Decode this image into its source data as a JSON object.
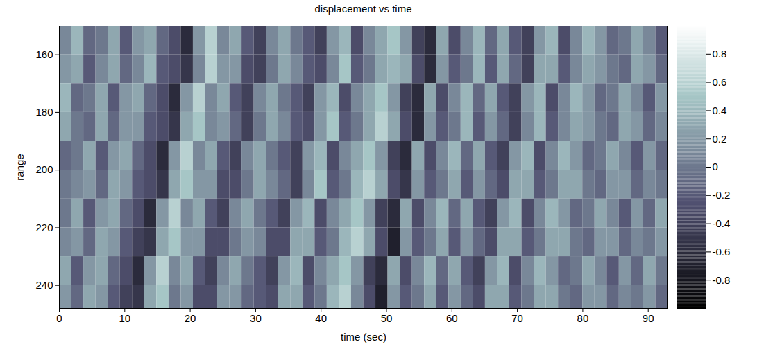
{
  "chart_data": {
    "type": "heatmap",
    "title": "displacement vs time",
    "x_label": "time (sec)",
    "y_label": "range",
    "xlim": [
      0,
      93
    ],
    "xticks": [
      0,
      10,
      20,
      30,
      40,
      50,
      60,
      70,
      80,
      90
    ],
    "ylim": [
      150,
      248
    ],
    "yticks": [
      160,
      180,
      200,
      220,
      240
    ],
    "x_edges": [
      0,
      1.86,
      3.72,
      5.58,
      7.44,
      9.3,
      11.16,
      13.02,
      14.88,
      16.74,
      18.6,
      20.46,
      22.32,
      24.18,
      26.04,
      27.9,
      29.76,
      31.62,
      33.48,
      35.34,
      37.2,
      39.06,
      40.92,
      42.78,
      44.64,
      46.5,
      48.36,
      50.22,
      52.08,
      53.94,
      55.8,
      57.66,
      59.52,
      61.38,
      63.24,
      65.1,
      66.96,
      68.82,
      70.68,
      72.54,
      74.4,
      76.26,
      78.12,
      79.98,
      81.84,
      83.7,
      85.56,
      87.42,
      89.28,
      91.14,
      93
    ],
    "y_edges": [
      150,
      160,
      170,
      180,
      190,
      200,
      210,
      220,
      230,
      240,
      248
    ],
    "cells": [
      [
        0.1,
        0.4,
        -0.1,
        0.0,
        0.3,
        -0.2,
        0.2,
        0.3,
        -0.1,
        -0.3,
        -0.6,
        0.2,
        0.6,
        0.1,
        0.3,
        -0.2,
        -0.4,
        0.1,
        0.3,
        0.0,
        -0.2,
        -0.4,
        0.2,
        0.4,
        -0.3,
        0.1,
        0.3,
        0.5,
        0.2,
        -0.4,
        -0.6,
        0.3,
        -0.3,
        0.1,
        0.4,
        -0.1,
        0.3,
        -0.2,
        -0.4,
        0.2,
        0.4,
        -0.3,
        0.1,
        0.4,
        0.2,
        -0.1,
        0.0,
        0.3,
        0.1,
        -0.2
      ],
      [
        0.2,
        0.3,
        -0.2,
        0.1,
        0.3,
        -0.1,
        0.1,
        0.4,
        -0.2,
        -0.3,
        -0.5,
        0.1,
        0.6,
        0.2,
        0.2,
        -0.3,
        -0.4,
        0.0,
        0.3,
        0.1,
        -0.2,
        -0.3,
        0.1,
        0.5,
        -0.2,
        0.0,
        0.3,
        0.4,
        0.3,
        -0.3,
        -0.6,
        0.2,
        -0.2,
        0.0,
        0.4,
        -0.2,
        0.3,
        -0.1,
        -0.4,
        0.3,
        0.3,
        -0.2,
        0.1,
        0.3,
        0.2,
        0.0,
        -0.1,
        0.3,
        0.2,
        -0.1
      ],
      [
        0.4,
        -0.1,
        0.0,
        0.3,
        -0.2,
        0.2,
        0.3,
        -0.1,
        -0.3,
        -0.6,
        0.2,
        0.6,
        0.1,
        0.3,
        -0.2,
        -0.4,
        0.1,
        0.3,
        0.0,
        -0.2,
        -0.4,
        0.2,
        0.4,
        -0.3,
        0.1,
        0.3,
        0.5,
        0.2,
        -0.4,
        -0.6,
        0.3,
        -0.3,
        0.1,
        0.4,
        -0.1,
        0.3,
        -0.2,
        -0.4,
        0.2,
        0.4,
        -0.3,
        0.1,
        0.4,
        0.2,
        -0.1,
        0.0,
        0.3,
        0.1,
        -0.2,
        0.2
      ],
      [
        0.3,
        0.0,
        -0.1,
        0.3,
        -0.1,
        0.2,
        0.2,
        -0.2,
        -0.3,
        -0.5,
        0.3,
        0.5,
        0.1,
        0.2,
        -0.1,
        -0.4,
        0.0,
        0.3,
        0.1,
        -0.2,
        -0.3,
        0.2,
        0.5,
        -0.2,
        0.0,
        0.3,
        0.6,
        0.3,
        -0.3,
        -0.6,
        0.2,
        -0.2,
        0.0,
        0.4,
        -0.2,
        0.2,
        -0.1,
        -0.4,
        0.1,
        0.4,
        -0.2,
        0.1,
        0.3,
        0.2,
        0.0,
        -0.1,
        0.3,
        0.2,
        -0.1,
        0.1
      ],
      [
        -0.1,
        0.0,
        0.3,
        -0.2,
        0.2,
        0.3,
        -0.1,
        -0.3,
        -0.6,
        0.2,
        0.6,
        0.1,
        0.3,
        -0.2,
        -0.4,
        0.1,
        0.3,
        0.0,
        -0.2,
        -0.4,
        0.2,
        0.4,
        -0.3,
        0.1,
        0.3,
        0.5,
        0.2,
        -0.4,
        -0.6,
        0.3,
        -0.3,
        0.1,
        0.4,
        -0.1,
        0.3,
        -0.2,
        -0.4,
        0.2,
        0.4,
        -0.3,
        0.1,
        0.4,
        0.2,
        -0.1,
        0.0,
        0.3,
        0.1,
        -0.2,
        0.2,
        -0.1
      ],
      [
        0.0,
        0.1,
        0.2,
        -0.1,
        0.3,
        0.2,
        -0.2,
        -0.3,
        -0.5,
        0.3,
        0.5,
        0.2,
        0.2,
        -0.3,
        -0.3,
        0.0,
        0.3,
        0.1,
        -0.1,
        -0.4,
        0.1,
        0.5,
        -0.2,
        0.0,
        0.4,
        0.6,
        0.3,
        -0.3,
        -0.5,
        0.2,
        -0.2,
        0.0,
        0.3,
        -0.2,
        0.2,
        -0.1,
        -0.3,
        0.3,
        0.3,
        -0.2,
        0.0,
        0.3,
        0.3,
        0.0,
        -0.1,
        0.2,
        0.2,
        -0.1,
        0.1,
        0.0
      ],
      [
        0.0,
        0.3,
        -0.2,
        0.2,
        0.3,
        -0.1,
        -0.3,
        -0.6,
        0.2,
        0.6,
        0.1,
        0.3,
        -0.2,
        -0.4,
        0.1,
        0.3,
        0.0,
        -0.2,
        -0.4,
        0.2,
        0.4,
        -0.3,
        0.1,
        0.3,
        0.5,
        0.2,
        -0.4,
        -0.6,
        0.3,
        -0.3,
        0.1,
        0.4,
        -0.1,
        0.3,
        -0.2,
        -0.4,
        0.2,
        0.4,
        -0.3,
        0.1,
        0.4,
        0.2,
        -0.1,
        0.0,
        0.3,
        0.1,
        -0.2,
        0.2,
        -0.1,
        0.3
      ],
      [
        0.1,
        0.2,
        -0.1,
        0.3,
        0.2,
        -0.2,
        -0.4,
        -0.5,
        0.3,
        0.5,
        0.2,
        0.2,
        -0.3,
        -0.3,
        0.0,
        0.2,
        0.1,
        -0.3,
        -0.3,
        0.3,
        0.3,
        -0.2,
        0.0,
        0.4,
        0.6,
        0.3,
        -0.3,
        -0.7,
        0.2,
        -0.2,
        0.0,
        0.3,
        -0.2,
        0.2,
        -0.1,
        -0.3,
        0.3,
        0.3,
        -0.2,
        0.0,
        0.3,
        0.3,
        0.0,
        -0.1,
        0.2,
        0.2,
        -0.1,
        0.1,
        0.0,
        0.2
      ],
      [
        0.3,
        -0.2,
        0.2,
        0.3,
        -0.1,
        -0.3,
        -0.6,
        0.2,
        0.6,
        0.1,
        0.3,
        -0.2,
        -0.4,
        0.1,
        0.3,
        0.0,
        -0.2,
        -0.4,
        0.2,
        0.4,
        -0.3,
        0.1,
        0.3,
        0.5,
        0.2,
        -0.4,
        -0.6,
        0.3,
        -0.3,
        0.1,
        0.4,
        -0.1,
        0.3,
        -0.2,
        -0.4,
        0.2,
        0.4,
        -0.3,
        0.1,
        0.4,
        0.2,
        -0.1,
        0.0,
        0.3,
        0.1,
        -0.2,
        0.2,
        -0.1,
        0.3,
        0.0
      ],
      [
        0.2,
        -0.1,
        0.3,
        0.2,
        -0.2,
        -0.4,
        -0.5,
        0.3,
        0.5,
        0.0,
        0.2,
        -0.3,
        -0.3,
        0.2,
        0.2,
        -0.1,
        -0.2,
        -0.3,
        0.3,
        0.3,
        -0.2,
        0.0,
        0.4,
        0.6,
        0.1,
        -0.3,
        -0.7,
        0.2,
        -0.2,
        0.0,
        0.3,
        -0.2,
        0.2,
        -0.1,
        -0.3,
        0.3,
        0.3,
        -0.2,
        0.0,
        0.3,
        0.3,
        0.0,
        -0.1,
        0.2,
        0.2,
        -0.1,
        0.1,
        0.0,
        0.2,
        -0.1
      ]
    ],
    "colorbar": {
      "range": [
        -1,
        1
      ],
      "ticks": [
        -0.8,
        -0.6,
        -0.4,
        -0.2,
        0,
        0.2,
        0.4,
        0.6,
        0.8
      ]
    }
  }
}
